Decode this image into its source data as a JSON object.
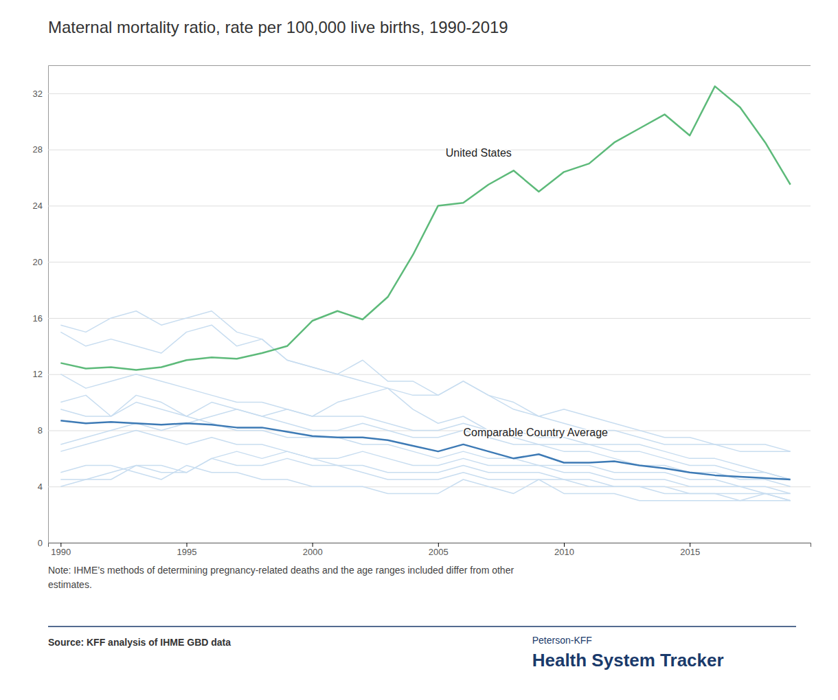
{
  "chart_data": {
    "type": "line",
    "title": "Maternal mortality ratio, rate per 100,000 live births, 1990-2019",
    "note": [
      "Note: IHME’s methods of determining pregnancy-related deaths and the age ranges included differ from other",
      "estimates."
    ],
    "source": "Source: KFF analysis of IHME GBD data",
    "brand": [
      "Peterson-KFF",
      "Health System Tracker"
    ],
    "x": [
      1990,
      1991,
      1992,
      1993,
      1994,
      1995,
      1996,
      1997,
      1998,
      1999,
      2000,
      2001,
      2002,
      2003,
      2004,
      2005,
      2006,
      2007,
      2008,
      2009,
      2010,
      2011,
      2012,
      2013,
      2014,
      2015,
      2016,
      2017,
      2018,
      2019
    ],
    "series": [
      {
        "color": "#c8ddf0",
        "values": [
          15.0,
          14.0,
          14.5,
          14.0,
          13.5,
          15.0,
          15.5,
          14.0,
          14.5,
          13.0,
          12.5,
          12.0,
          13.0,
          11.5,
          11.5,
          10.5,
          11.5,
          10.5,
          9.5,
          9.0,
          8.5,
          8.0,
          8.0,
          7.5,
          7.0,
          7.0,
          7.0,
          6.5,
          6.5,
          6.5
        ]
      },
      {
        "color": "#c8ddf0",
        "values": [
          5.0,
          5.5,
          5.5,
          5.0,
          4.5,
          5.5,
          5.0,
          5.0,
          4.5,
          4.5,
          4.0,
          4.0,
          4.0,
          3.5,
          3.5,
          3.5,
          4.5,
          4.0,
          3.5,
          4.5,
          3.5,
          3.5,
          3.5,
          3.0,
          3.0,
          3.0,
          3.0,
          3.0,
          3.0,
          3.0
        ]
      },
      {
        "color": "#c8ddf0",
        "values": [
          9.5,
          9.0,
          9.0,
          10.5,
          10.0,
          9.0,
          10.0,
          9.5,
          9.0,
          8.5,
          8.0,
          8.0,
          8.5,
          8.0,
          7.5,
          7.5,
          8.0,
          7.5,
          7.0,
          7.0,
          6.5,
          6.5,
          6.0,
          5.5,
          5.5,
          5.0,
          5.0,
          4.5,
          4.5,
          4.0
        ]
      },
      {
        "color": "#c8ddf0",
        "values": [
          4.0,
          4.5,
          4.5,
          5.5,
          5.0,
          5.0,
          6.0,
          5.5,
          5.5,
          6.0,
          5.5,
          5.5,
          5.0,
          4.5,
          4.5,
          4.5,
          5.0,
          4.5,
          4.5,
          4.5,
          4.5,
          4.0,
          4.0,
          4.0,
          3.5,
          3.5,
          3.5,
          3.0,
          3.5,
          3.0
        ]
      },
      {
        "color": "#c8ddf0",
        "values": [
          7.0,
          7.5,
          8.0,
          8.5,
          8.0,
          8.5,
          9.0,
          9.5,
          9.0,
          9.5,
          9.0,
          10.0,
          10.5,
          11.0,
          9.5,
          8.5,
          9.0,
          8.0,
          8.0,
          7.5,
          7.5,
          7.0,
          7.0,
          7.0,
          6.5,
          6.0,
          6.0,
          5.5,
          5.0,
          4.5
        ]
      },
      {
        "color": "#c8ddf0",
        "values": [
          12.0,
          11.0,
          11.5,
          12.0,
          11.5,
          11.0,
          10.5,
          10.0,
          10.0,
          9.5,
          9.0,
          9.0,
          9.0,
          8.5,
          8.0,
          8.0,
          8.5,
          8.0,
          7.5,
          7.0,
          7.0,
          7.0,
          6.5,
          6.5,
          6.0,
          5.5,
          5.5,
          5.0,
          5.0,
          4.5
        ]
      },
      {
        "color": "#c8ddf0",
        "values": [
          10.0,
          10.5,
          9.0,
          10.0,
          9.5,
          9.0,
          8.5,
          8.0,
          8.0,
          7.5,
          7.5,
          7.5,
          7.0,
          7.0,
          6.5,
          6.0,
          6.5,
          6.0,
          6.0,
          5.5,
          5.5,
          5.5,
          5.0,
          5.0,
          5.0,
          4.5,
          4.5,
          4.0,
          4.0,
          3.5
        ]
      },
      {
        "color": "#c8ddf0",
        "values": [
          4.5,
          4.5,
          5.0,
          5.5,
          5.5,
          5.0,
          6.0,
          6.5,
          6.0,
          6.5,
          6.0,
          5.5,
          5.5,
          5.0,
          5.0,
          5.0,
          5.5,
          5.0,
          5.0,
          5.0,
          4.5,
          4.5,
          4.0,
          4.0,
          4.0,
          3.5,
          3.5,
          3.5,
          3.5,
          3.0
        ]
      },
      {
        "color": "#c8ddf0",
        "values": [
          15.5,
          15.0,
          16.0,
          16.5,
          15.5,
          16.0,
          16.5,
          15.0,
          14.5,
          13.0,
          12.5,
          12.0,
          11.5,
          11.0,
          10.5,
          10.5,
          11.5,
          10.5,
          10.0,
          9.0,
          9.5,
          9.0,
          8.5,
          8.0,
          7.5,
          7.5,
          7.0,
          7.0,
          7.0,
          6.5
        ]
      },
      {
        "color": "#c8ddf0",
        "values": [
          6.5,
          7.0,
          7.5,
          8.0,
          7.5,
          7.0,
          7.5,
          7.0,
          7.0,
          6.5,
          6.0,
          6.0,
          6.5,
          6.0,
          5.5,
          5.5,
          6.0,
          5.5,
          5.5,
          5.5,
          5.0,
          5.0,
          4.5,
          4.5,
          4.5,
          4.0,
          4.0,
          4.0,
          3.5,
          3.5
        ]
      },
      {
        "color": "#5dba7a",
        "values": [
          12.8,
          12.4,
          12.5,
          12.3,
          12.5,
          13.0,
          13.2,
          13.1,
          13.5,
          14.0,
          15.8,
          16.5,
          15.9,
          17.5,
          20.5,
          24.0,
          24.2,
          25.5,
          26.5,
          25.0,
          26.4,
          27.0,
          28.5,
          29.5,
          30.5,
          29.0,
          32.5,
          31.0,
          28.5,
          25.5
        ]
      },
      {
        "color": "#3d7ab5",
        "values": [
          8.7,
          8.5,
          8.6,
          8.5,
          8.4,
          8.5,
          8.4,
          8.2,
          8.2,
          7.9,
          7.6,
          7.5,
          7.5,
          7.3,
          6.9,
          6.5,
          7.0,
          6.5,
          6.0,
          6.3,
          5.7,
          5.7,
          5.8,
          5.5,
          5.3,
          5.0,
          4.8,
          4.7,
          4.6,
          4.5
        ]
      }
    ],
    "annotations": [
      {
        "text": "United States",
        "x": 2005.3,
        "y": 27.5
      },
      {
        "text": "Comparable Country Average",
        "x": 2006.0,
        "y": 7.6
      }
    ],
    "xlim": [
      1989.5,
      2019.8
    ],
    "xticks": [
      1990,
      1995,
      2000,
      2005,
      2010,
      2015
    ],
    "ylim": [
      0,
      34
    ],
    "yticks": [
      0,
      4,
      8,
      12,
      16,
      20,
      24,
      28,
      32
    ],
    "grid": true
  }
}
